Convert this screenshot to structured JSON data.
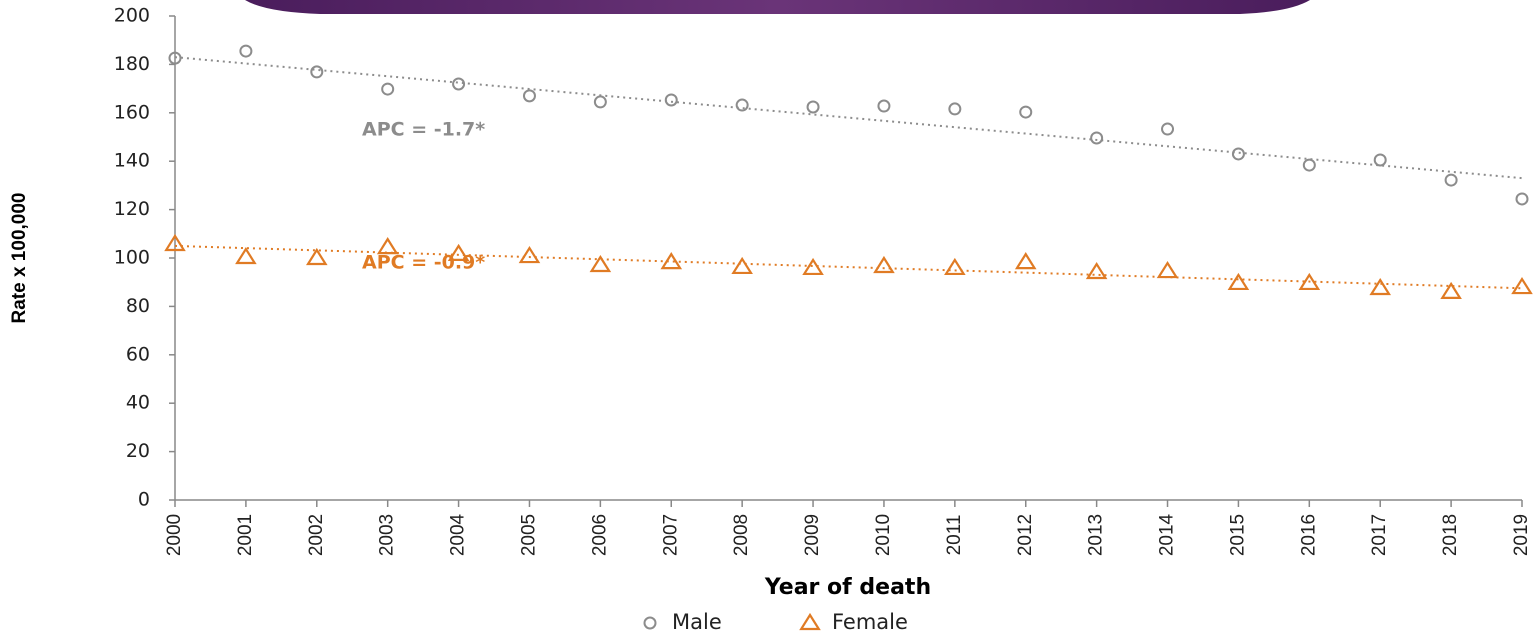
{
  "chart_data": {
    "type": "scatter",
    "x_label": "Year of death",
    "y_label": "Rate x 100,000",
    "categories": [
      "2000",
      "2001",
      "2002",
      "2003",
      "2004",
      "2005",
      "2006",
      "2007",
      "2008",
      "2009",
      "2010",
      "2011",
      "2012",
      "2013",
      "2014",
      "2015",
      "2016",
      "2017",
      "2018",
      "2019"
    ],
    "ylim": [
      0,
      200
    ],
    "yticks": [
      0,
      20,
      40,
      60,
      80,
      100,
      120,
      140,
      160,
      180,
      200
    ],
    "grid": false,
    "legend": "bottom",
    "series": [
      {
        "name": "Male",
        "color": "#8c8c8c",
        "marker": "circle",
        "values": [
          182.6,
          185.5,
          176.9,
          169.8,
          171.9,
          167,
          164.5,
          165.3,
          163.2,
          162.4,
          162.8,
          161.6,
          160.3,
          149.6,
          153.3,
          143,
          138.4,
          140.5,
          132.2,
          124.4
        ],
        "trend": [
          183,
          133
        ],
        "annotation": "APC = -1.7*"
      },
      {
        "name": "Female",
        "color": "#e07b24",
        "marker": "triangle",
        "values": [
          105.8,
          100.4,
          100,
          104.5,
          101.7,
          100.8,
          97.1,
          98.3,
          96.3,
          95.9,
          96.7,
          95.9,
          98.3,
          94.2,
          94.6,
          89.7,
          89.7,
          87.6,
          86,
          88
        ],
        "trend": [
          105,
          87.5
        ],
        "annotation": "APC = -0.9*"
      }
    ]
  }
}
